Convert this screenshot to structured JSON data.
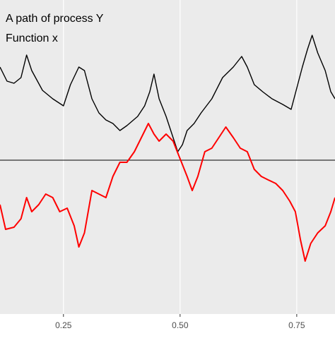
{
  "chart_data": {
    "type": "line",
    "xlim": [
      0.114,
      0.832
    ],
    "ylim": [
      -2.18,
      2.27
    ],
    "xticks": [
      {
        "value": 0.25,
        "label": "0.25"
      },
      {
        "value": 0.5,
        "label": "0.50"
      },
      {
        "value": 0.75,
        "label": "0.75"
      }
    ],
    "hline": 0,
    "grid": true,
    "series": [
      {
        "name": "A path of process Y",
        "color": "#000000",
        "x": [
          0.114,
          0.129,
          0.144,
          0.159,
          0.171,
          0.182,
          0.205,
          0.227,
          0.25,
          0.265,
          0.283,
          0.295,
          0.311,
          0.326,
          0.341,
          0.356,
          0.371,
          0.386,
          0.409,
          0.424,
          0.435,
          0.444,
          0.455,
          0.47,
          0.485,
          0.495,
          0.505,
          0.515,
          0.53,
          0.545,
          0.568,
          0.591,
          0.614,
          0.632,
          0.644,
          0.659,
          0.677,
          0.697,
          0.72,
          0.738,
          0.75,
          0.762,
          0.773,
          0.783,
          0.795,
          0.811,
          0.823,
          0.832
        ],
        "values": [
          1.32,
          1.12,
          1.09,
          1.17,
          1.49,
          1.27,
          0.99,
          0.87,
          0.77,
          1.07,
          1.32,
          1.27,
          0.87,
          0.67,
          0.57,
          0.52,
          0.42,
          0.49,
          0.62,
          0.77,
          0.97,
          1.22,
          0.87,
          0.62,
          0.32,
          0.12,
          0.22,
          0.42,
          0.52,
          0.67,
          0.87,
          1.17,
          1.32,
          1.47,
          1.32,
          1.07,
          0.97,
          0.87,
          0.79,
          0.72,
          1.02,
          1.32,
          1.57,
          1.77,
          1.52,
          1.27,
          0.97,
          0.87
        ]
      },
      {
        "name": "Function x",
        "color": "#ff0000",
        "x": [
          0.114,
          0.126,
          0.144,
          0.159,
          0.171,
          0.182,
          0.197,
          0.212,
          0.227,
          0.242,
          0.258,
          0.273,
          0.283,
          0.295,
          0.311,
          0.326,
          0.341,
          0.356,
          0.371,
          0.386,
          0.402,
          0.417,
          0.432,
          0.444,
          0.455,
          0.47,
          0.485,
          0.5,
          0.515,
          0.526,
          0.538,
          0.553,
          0.568,
          0.583,
          0.598,
          0.614,
          0.629,
          0.644,
          0.659,
          0.674,
          0.689,
          0.705,
          0.72,
          0.735,
          0.747,
          0.758,
          0.768,
          0.78,
          0.795,
          0.811,
          0.823,
          0.832
        ],
        "values": [
          -0.63,
          -0.98,
          -0.95,
          -0.83,
          -0.53,
          -0.73,
          -0.63,
          -0.48,
          -0.53,
          -0.73,
          -0.68,
          -0.93,
          -1.23,
          -1.03,
          -0.43,
          -0.48,
          -0.53,
          -0.23,
          -0.03,
          -0.03,
          0.12,
          0.32,
          0.52,
          0.37,
          0.27,
          0.37,
          0.27,
          0.02,
          -0.23,
          -0.43,
          -0.23,
          0.12,
          0.17,
          0.32,
          0.47,
          0.32,
          0.17,
          0.12,
          -0.13,
          -0.23,
          -0.28,
          -0.33,
          -0.43,
          -0.58,
          -0.73,
          -1.13,
          -1.43,
          -1.18,
          -1.03,
          -0.93,
          -0.73,
          -0.53
        ]
      }
    ]
  }
}
